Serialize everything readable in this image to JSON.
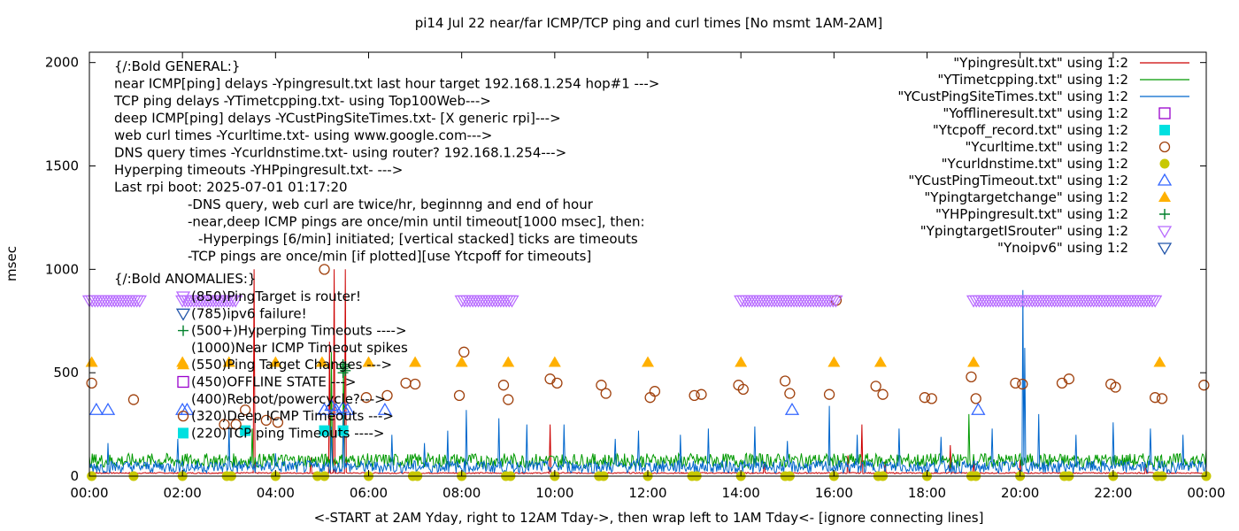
{
  "chart_data": {
    "type": "line",
    "title": "pi14 Jul 22  near/far ICMP/TCP ping and curl times [No msmt 1AM-2AM]",
    "xlabel": "<-START at 2AM Yday, right to 12AM Tday->, then wrap left to 1AM Tday<- [ignore connecting lines]",
    "ylabel": "msec",
    "xlim": [
      0,
      24
    ],
    "ylim": [
      0,
      2050
    ],
    "x_ticks": [
      0,
      2,
      4,
      6,
      8,
      10,
      12,
      14,
      16,
      18,
      20,
      22,
      24
    ],
    "x_tick_labels": [
      "00:00",
      "02:00",
      "04:00",
      "06:00",
      "08:00",
      "10:00",
      "12:00",
      "14:00",
      "16:00",
      "18:00",
      "20:00",
      "22:00",
      "00:00"
    ],
    "y_ticks": [
      0,
      500,
      1000,
      1500,
      2000
    ],
    "y_tick_labels": [
      "0",
      "500",
      "1000",
      "1500",
      "2000"
    ],
    "grid": false,
    "legend_position": "top-right",
    "annotation_lines": [
      "{/:Bold GENERAL:}",
      "near ICMP[ping] delays -Ypingresult.txt last hour target 192.168.1.254 hop#1 --->",
      "TCP ping delays -YTimetcpping.txt- using Top100Web--->",
      "deep ICMP[ping] delays -YCustPingSiteTimes.txt- [X generic rpi]--->",
      "web curl times -Ycurltime.txt- using www.google.com--->",
      "DNS query times -Ycurldnstime.txt- using router? 192.168.1.254--->",
      "Hyperping timeouts -YHPpingresult.txt- --->",
      "Last rpi boot: 2025-07-01 01:17:20",
      "-DNS query, web curl are twice/hr, beginnng and end of hour",
      "-near,deep ICMP pings are once/min until timeout[1000 msec], then:",
      "-Hyperpings [6/min] initiated; [vertical stacked] ticks are timeouts",
      "-TCP pings are once/min [if plotted][use Ytcpoff for timeouts]",
      "{/:Bold ANOMALIES:}"
    ],
    "anomalies": [
      {
        "marker": "tri-down-violet",
        "text": "(850)PingTarget is router!"
      },
      {
        "marker": "tri-down-blue",
        "text": "(785)ipv6 failure!"
      },
      {
        "marker": "plus-green",
        "text": "(500+)Hyperping Timeouts ---->"
      },
      {
        "marker": "none",
        "text": "(1000)Near ICMP Timeout spikes"
      },
      {
        "marker": "tri-up-orange",
        "text": "(550)Ping Target Changes --->"
      },
      {
        "marker": "square-purple",
        "text": "(450)OFFLINE STATE --->"
      },
      {
        "marker": "none",
        "text": "(400)Reboot/powercycle?--->"
      },
      {
        "marker": "circle-brown",
        "text": "(320)Deep ICMP Timeouts --->"
      },
      {
        "marker": "square-cyan",
        "text": "(220)TCP ping Timeouts ---->"
      }
    ],
    "series": [
      {
        "name": "\"Ypingresult.txt\" using 1:2",
        "color": "#cc0000",
        "style": "line",
        "baseline": 15,
        "spikes": [
          [
            3.55,
            1000
          ],
          [
            4.75,
            90
          ],
          [
            5.15,
            650
          ],
          [
            5.25,
            1000
          ],
          [
            5.5,
            1000
          ],
          [
            9.9,
            250
          ],
          [
            14.5,
            60
          ],
          [
            16.3,
            100
          ],
          [
            16.6,
            250
          ],
          [
            17.1,
            70
          ],
          [
            18.5,
            150
          ],
          [
            19.0,
            70
          ],
          [
            20.0,
            80
          ],
          [
            22.7,
            60
          ]
        ]
      },
      {
        "name": "\"YTimetcpping.txt\" using 1:2",
        "color": "#009900",
        "style": "line",
        "baseline": 75,
        "noise": 35,
        "start": 0.0,
        "end": 24.0,
        "spikes": [
          [
            3.5,
            230
          ],
          [
            5.2,
            600
          ],
          [
            5.45,
            550
          ],
          [
            18.9,
            300
          ],
          [
            24.0,
            130
          ]
        ]
      },
      {
        "name": "\"YCustPingSiteTimes.txt\" using 1:2",
        "color": "#0066cc",
        "style": "line",
        "baseline": 45,
        "noise": 30,
        "start": 0.0,
        "end": 24.0,
        "spikes": [
          [
            0.4,
            160
          ],
          [
            1.9,
            180
          ],
          [
            3.0,
            240
          ],
          [
            4.0,
            110
          ],
          [
            5.2,
            240
          ],
          [
            5.45,
            300
          ],
          [
            6.5,
            200
          ],
          [
            7.2,
            160
          ],
          [
            7.7,
            220
          ],
          [
            8.1,
            320
          ],
          [
            8.8,
            280
          ],
          [
            9.4,
            250
          ],
          [
            10.2,
            250
          ],
          [
            11.3,
            180
          ],
          [
            11.8,
            220
          ],
          [
            12.7,
            200
          ],
          [
            13.3,
            230
          ],
          [
            14.3,
            240
          ],
          [
            15.0,
            170
          ],
          [
            15.9,
            340
          ],
          [
            16.5,
            200
          ],
          [
            17.4,
            230
          ],
          [
            18.3,
            190
          ],
          [
            19.4,
            230
          ],
          [
            20.05,
            900
          ],
          [
            20.1,
            620
          ],
          [
            20.4,
            300
          ],
          [
            21.2,
            200
          ],
          [
            22.0,
            260
          ],
          [
            22.8,
            230
          ],
          [
            23.5,
            200
          ]
        ]
      },
      {
        "name": "\"Yofflineresult.txt\" using 1:2",
        "color": "#9900cc",
        "style": "square-open",
        "points": []
      },
      {
        "name": "\"Ytcpoff_record.txt\" using 1:2",
        "color": "#00e0e0",
        "style": "square-filled",
        "points": [
          [
            3.35,
            220
          ],
          [
            5.05,
            220
          ],
          [
            5.45,
            220
          ]
        ]
      },
      {
        "name": "\"Ycurltime.txt\" using 1:2",
        "color": "#a0410d",
        "style": "circle-open",
        "points": [
          [
            0.05,
            450
          ],
          [
            0.95,
            370
          ],
          [
            2.9,
            250
          ],
          [
            3.15,
            250
          ],
          [
            3.35,
            320
          ],
          [
            3.8,
            270
          ],
          [
            4.05,
            260
          ],
          [
            5.05,
            1000
          ],
          [
            5.95,
            380
          ],
          [
            6.4,
            390
          ],
          [
            6.8,
            450
          ],
          [
            7.0,
            445
          ],
          [
            7.95,
            390
          ],
          [
            8.05,
            600
          ],
          [
            8.9,
            440
          ],
          [
            9.0,
            370
          ],
          [
            9.9,
            470
          ],
          [
            10.05,
            450
          ],
          [
            11.0,
            440
          ],
          [
            11.1,
            400
          ],
          [
            12.05,
            380
          ],
          [
            12.15,
            410
          ],
          [
            13.0,
            390
          ],
          [
            13.15,
            395
          ],
          [
            13.95,
            440
          ],
          [
            14.05,
            420
          ],
          [
            14.95,
            460
          ],
          [
            15.05,
            400
          ],
          [
            15.9,
            395
          ],
          [
            16.05,
            850
          ],
          [
            16.9,
            435
          ],
          [
            17.05,
            395
          ],
          [
            17.95,
            380
          ],
          [
            18.1,
            375
          ],
          [
            18.95,
            480
          ],
          [
            19.05,
            375
          ],
          [
            19.9,
            450
          ],
          [
            20.05,
            445
          ],
          [
            20.9,
            450
          ],
          [
            21.05,
            470
          ],
          [
            21.95,
            445
          ],
          [
            22.05,
            430
          ],
          [
            22.9,
            380
          ],
          [
            23.05,
            375
          ],
          [
            23.95,
            440
          ]
        ]
      },
      {
        "name": "\"Ycurldnstime.txt\" using 1:2",
        "color": "#c8c800",
        "style": "circle-filled",
        "points": [
          [
            0.05,
            0
          ],
          [
            0.95,
            0
          ],
          [
            2.0,
            0
          ],
          [
            2.95,
            0
          ],
          [
            3.05,
            0
          ],
          [
            4.0,
            0
          ],
          [
            4.9,
            0
          ],
          [
            5.05,
            0
          ],
          [
            6.0,
            0
          ],
          [
            6.95,
            0
          ],
          [
            7.05,
            0
          ],
          [
            8.0,
            0
          ],
          [
            8.95,
            0
          ],
          [
            9.05,
            0
          ],
          [
            10.0,
            0
          ],
          [
            10.95,
            0
          ],
          [
            11.05,
            0
          ],
          [
            12.0,
            0
          ],
          [
            12.95,
            0
          ],
          [
            13.05,
            0
          ],
          [
            14.0,
            0
          ],
          [
            14.95,
            0
          ],
          [
            15.05,
            0
          ],
          [
            16.0,
            0
          ],
          [
            16.95,
            0
          ],
          [
            17.05,
            0
          ],
          [
            18.0,
            0
          ],
          [
            18.95,
            0
          ],
          [
            19.05,
            0
          ],
          [
            20.0,
            0
          ],
          [
            20.95,
            0
          ],
          [
            21.05,
            0
          ],
          [
            22.0,
            0
          ],
          [
            22.95,
            0
          ],
          [
            23.05,
            0
          ],
          [
            24.0,
            0
          ]
        ]
      },
      {
        "name": "\"YCustPingTimeout.txt\" using 1:2",
        "color": "#3366ff",
        "style": "tri-up-open",
        "points": [
          [
            0.15,
            320
          ],
          [
            0.4,
            320
          ],
          [
            2.0,
            320
          ],
          [
            2.1,
            320
          ],
          [
            5.05,
            320
          ],
          [
            5.2,
            340
          ],
          [
            5.3,
            320
          ],
          [
            5.45,
            330
          ],
          [
            5.55,
            320
          ],
          [
            6.35,
            320
          ],
          [
            15.1,
            320
          ],
          [
            19.1,
            320
          ]
        ]
      },
      {
        "name": "\"Ypingtargetchange\" using 1:2",
        "color": "#ffb000",
        "style": "tri-up-filled",
        "points": [
          [
            0.05,
            550
          ],
          [
            2.0,
            550
          ],
          [
            3.0,
            550
          ],
          [
            4.0,
            550
          ],
          [
            5.0,
            550
          ],
          [
            6.0,
            550
          ],
          [
            7.0,
            550
          ],
          [
            8.0,
            550
          ],
          [
            9.0,
            550
          ],
          [
            10.0,
            550
          ],
          [
            12.0,
            550
          ],
          [
            14.0,
            550
          ],
          [
            16.0,
            550
          ],
          [
            17.0,
            550
          ],
          [
            19.0,
            550
          ],
          [
            23.0,
            550
          ]
        ]
      },
      {
        "name": "\"YHPpingresult.txt\" using 1:2",
        "color": "#00802b",
        "style": "plus",
        "points": [
          [
            5.45,
            500
          ],
          [
            5.45,
            520
          ],
          [
            5.45,
            540
          ],
          [
            5.5,
            510
          ],
          [
            5.5,
            530
          ]
        ]
      },
      {
        "name": "\"YpingtargetISrouter\" using 1:2",
        "color": "#b86bff",
        "style": "tri-down-dense",
        "ranges": [
          [
            0.0,
            1.1
          ],
          [
            2.0,
            3.2
          ],
          [
            8.0,
            9.1
          ],
          [
            14.0,
            16.1
          ],
          [
            19.0,
            22.9
          ]
        ],
        "value": 850
      },
      {
        "name": "\"Ynoipv6\" using 1:2",
        "color": "#2255aa",
        "style": "tri-down-open",
        "points": []
      }
    ]
  }
}
